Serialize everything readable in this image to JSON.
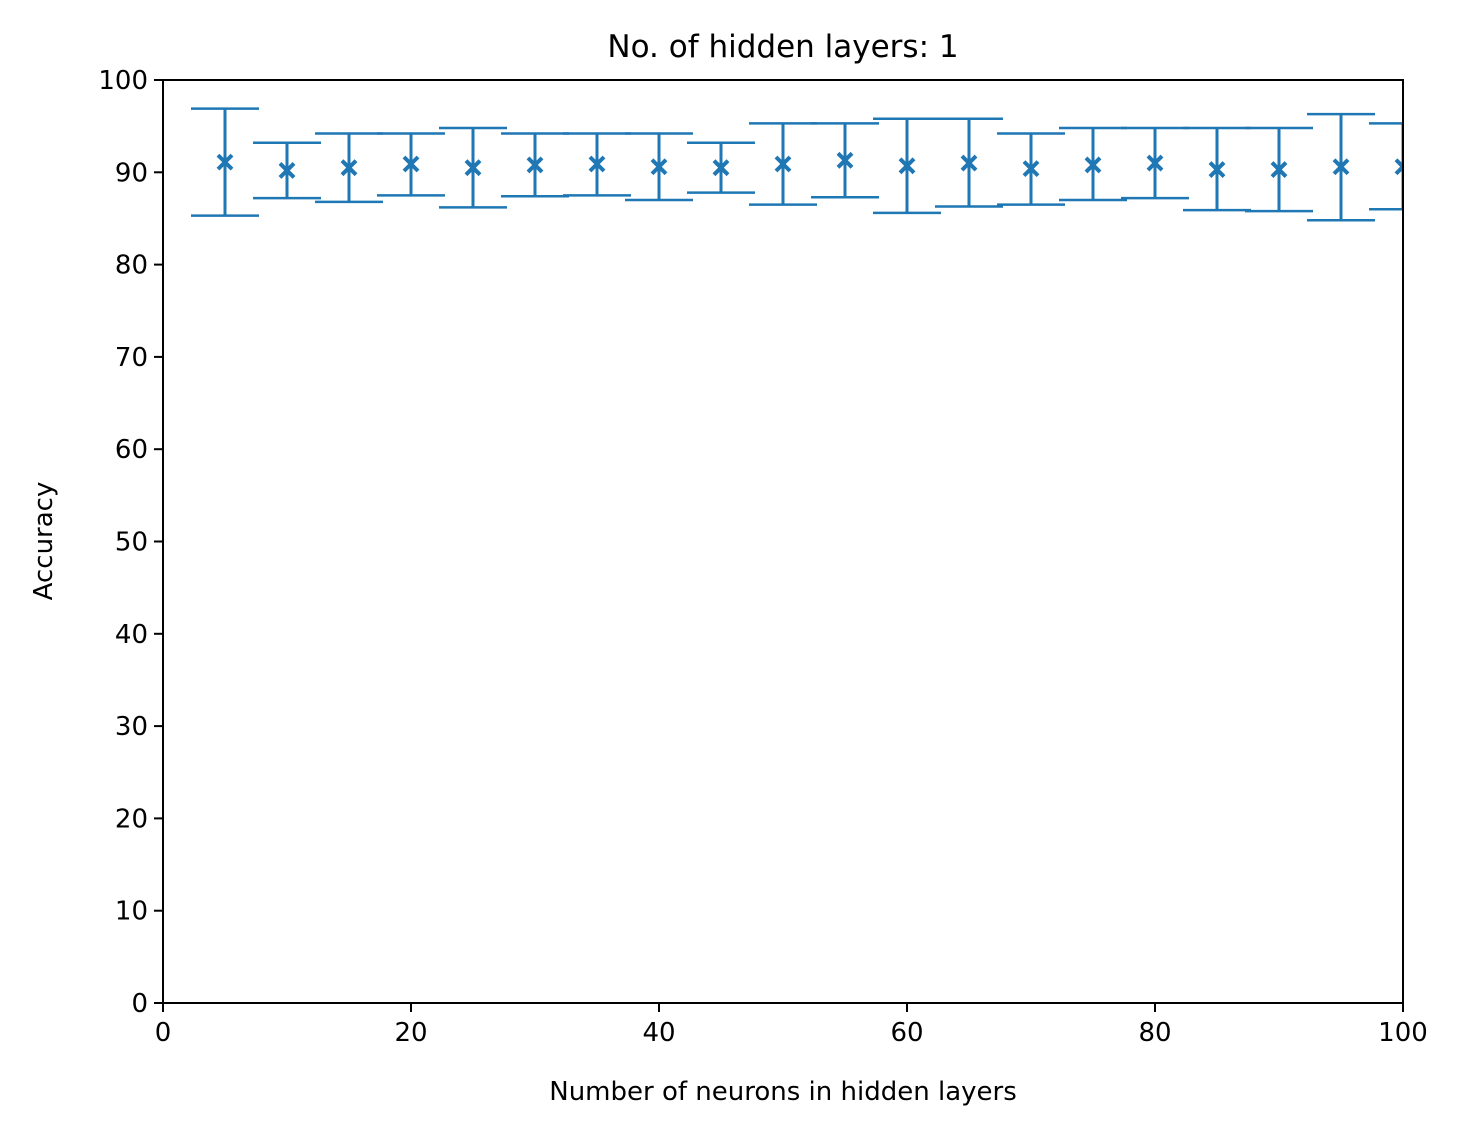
{
  "chart_data": {
    "type": "errorbar",
    "title": "No. of hidden layers: 1",
    "xlabel": "Number of neurons in hidden layers",
    "ylabel": "Accuracy",
    "xlim": [
      0,
      100
    ],
    "ylim": [
      0,
      100
    ],
    "x_ticks": [
      "0",
      "20",
      "40",
      "60",
      "80",
      "100"
    ],
    "y_ticks": [
      "0",
      "10",
      "20",
      "30",
      "40",
      "50",
      "60",
      "70",
      "80",
      "90",
      "100"
    ],
    "grid": false,
    "marker": "x",
    "color": "#1f77b4",
    "points": [
      {
        "x": 5,
        "y": 91.1,
        "low": 85.3,
        "high": 96.9
      },
      {
        "x": 10,
        "y": 90.2,
        "low": 87.2,
        "high": 93.2
      },
      {
        "x": 15,
        "y": 90.5,
        "low": 86.8,
        "high": 94.2
      },
      {
        "x": 20,
        "y": 90.9,
        "low": 87.5,
        "high": 94.2
      },
      {
        "x": 25,
        "y": 90.5,
        "low": 86.2,
        "high": 94.8
      },
      {
        "x": 30,
        "y": 90.8,
        "low": 87.4,
        "high": 94.2
      },
      {
        "x": 35,
        "y": 90.9,
        "low": 87.5,
        "high": 94.2
      },
      {
        "x": 40,
        "y": 90.6,
        "low": 87.0,
        "high": 94.2
      },
      {
        "x": 45,
        "y": 90.5,
        "low": 87.8,
        "high": 93.2
      },
      {
        "x": 50,
        "y": 90.9,
        "low": 86.5,
        "high": 95.3
      },
      {
        "x": 55,
        "y": 91.3,
        "low": 87.3,
        "high": 95.3
      },
      {
        "x": 60,
        "y": 90.7,
        "low": 85.6,
        "high": 95.8
      },
      {
        "x": 65,
        "y": 91.0,
        "low": 86.3,
        "high": 95.8
      },
      {
        "x": 70,
        "y": 90.4,
        "low": 86.5,
        "high": 94.2
      },
      {
        "x": 75,
        "y": 90.8,
        "low": 87.0,
        "high": 94.8
      },
      {
        "x": 80,
        "y": 91.0,
        "low": 87.2,
        "high": 94.8
      },
      {
        "x": 85,
        "y": 90.3,
        "low": 85.9,
        "high": 94.8
      },
      {
        "x": 90,
        "y": 90.3,
        "low": 85.8,
        "high": 94.8
      },
      {
        "x": 95,
        "y": 90.6,
        "low": 84.8,
        "high": 96.3
      },
      {
        "x": 100,
        "y": 90.6,
        "low": 86.0,
        "high": 95.3
      }
    ]
  }
}
